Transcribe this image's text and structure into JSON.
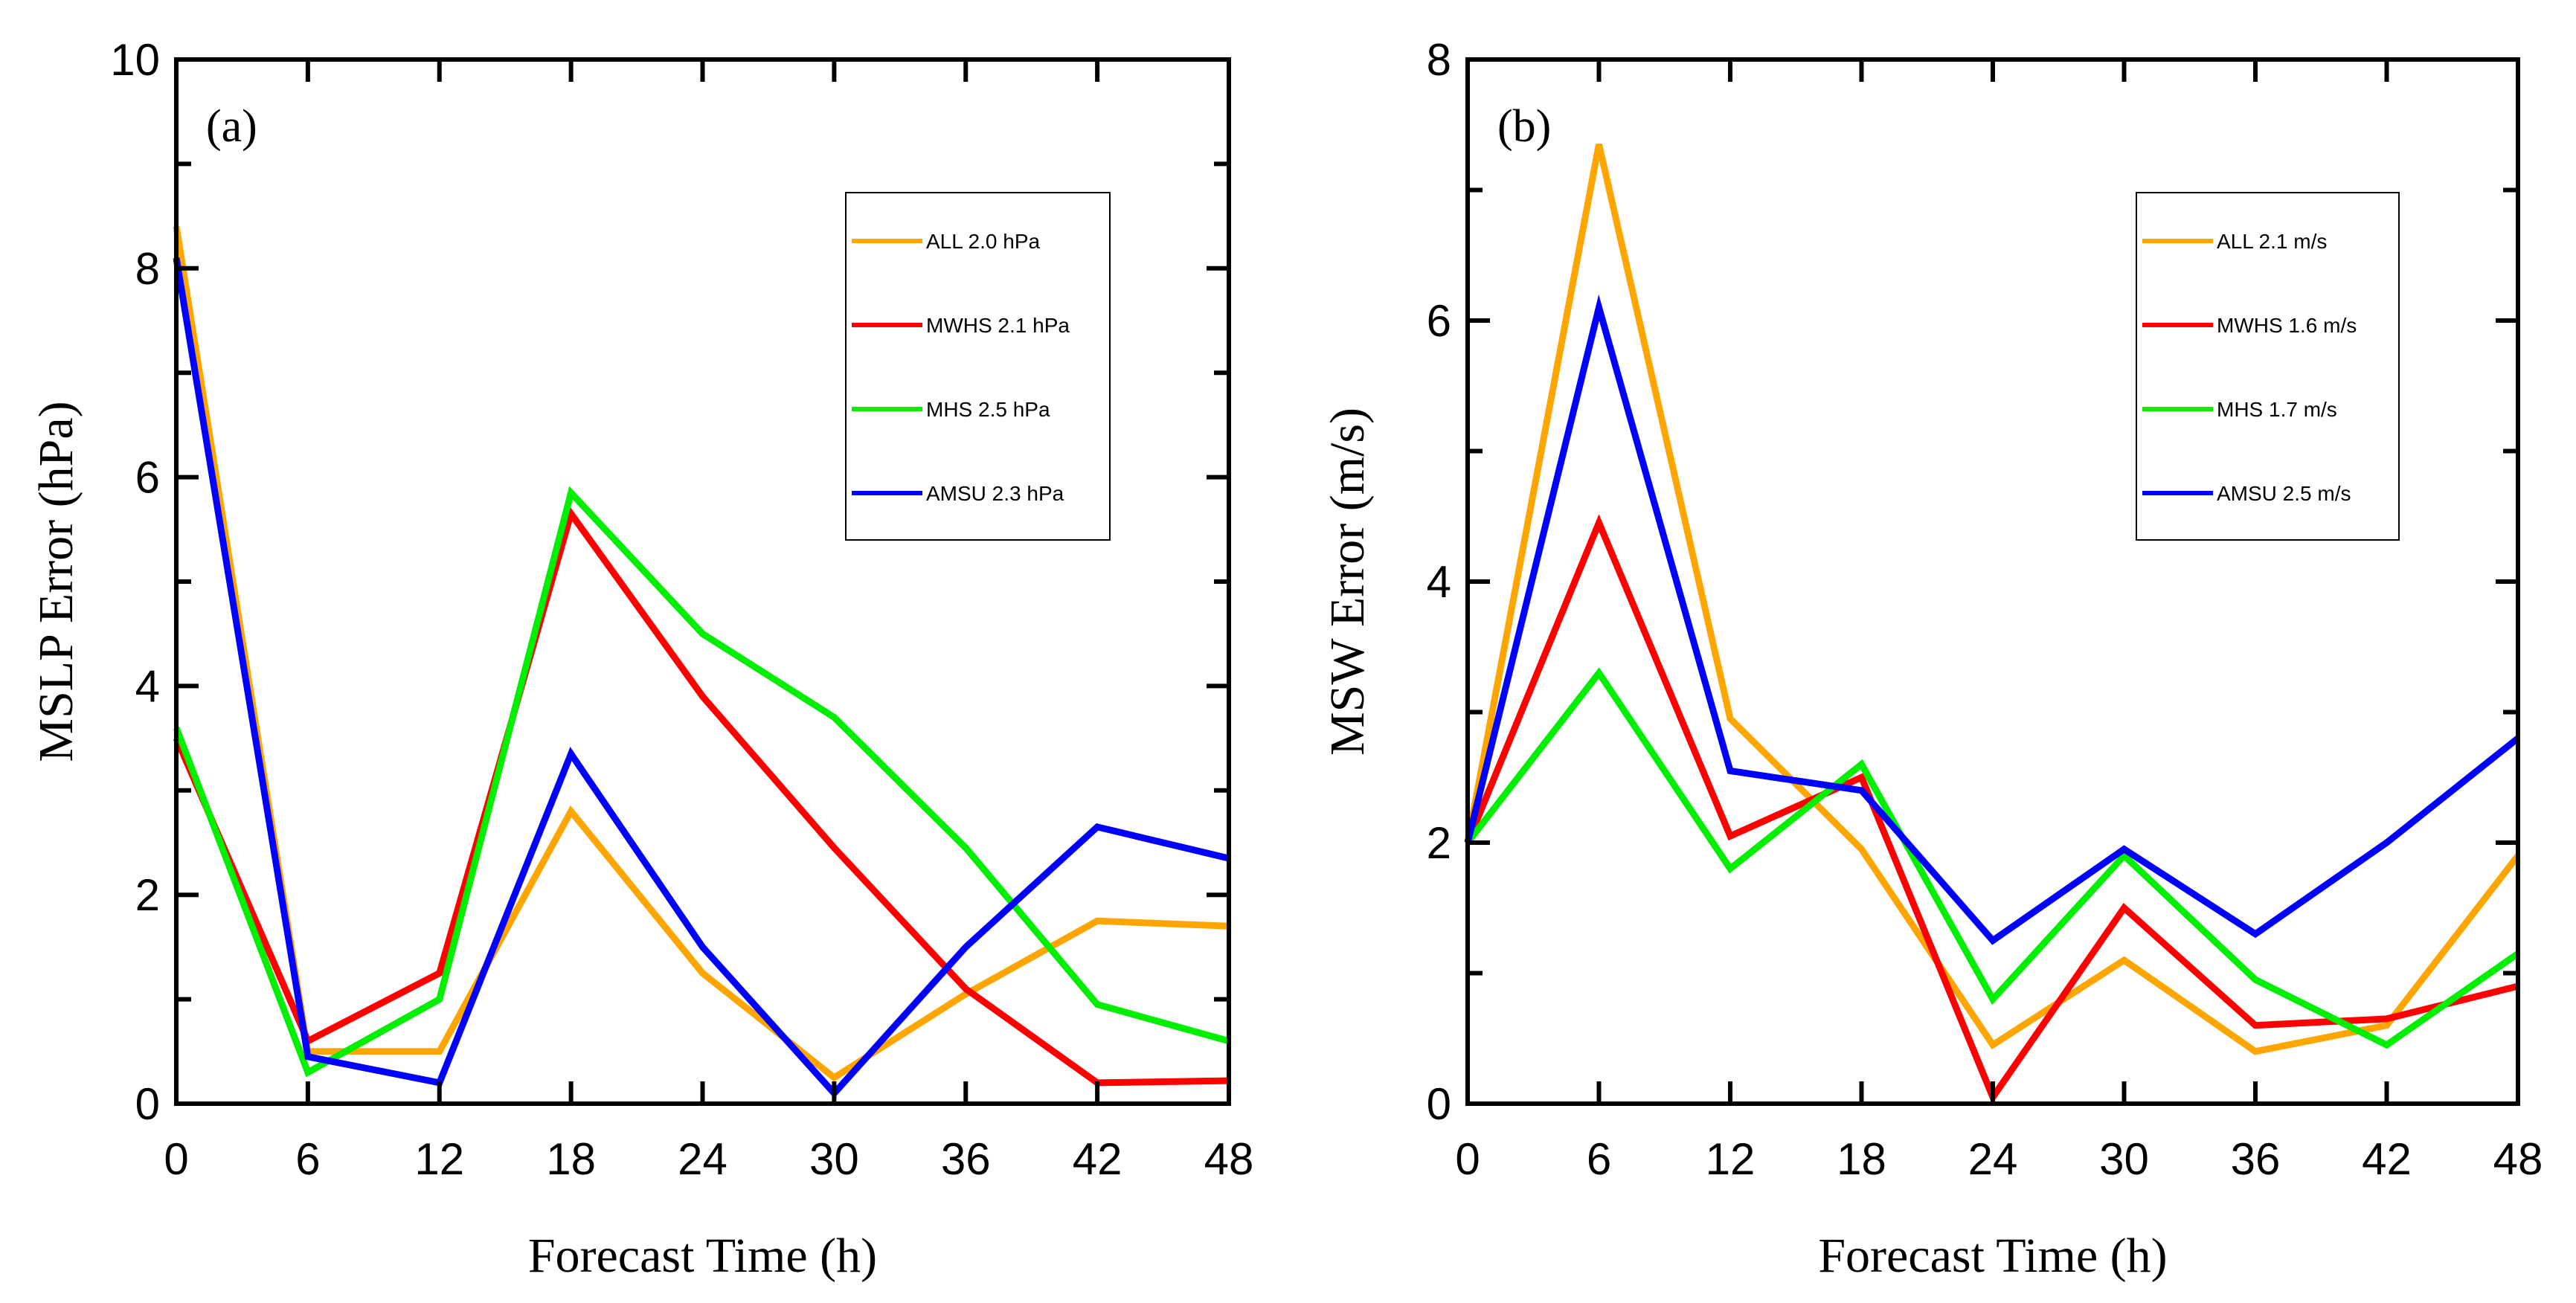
{
  "chart_data": [
    {
      "type": "line",
      "panel_label": "(a)",
      "xlabel": "Forecast Time (h)",
      "ylabel": "MSLP Error (hPa)",
      "x": [
        0,
        6,
        12,
        18,
        24,
        30,
        36,
        42,
        48
      ],
      "xticks": [
        "0",
        "6",
        "12",
        "18",
        "24",
        "30",
        "36",
        "42",
        "48"
      ],
      "yticks": [
        "0",
        "2",
        "4",
        "6",
        "8",
        "10"
      ],
      "xlim": [
        0,
        48
      ],
      "ylim": [
        0,
        10
      ],
      "legend_position": "top-right",
      "series": [
        {
          "name": "ALL",
          "legend": "ALL  2.0 hPa",
          "color": "#FFA500",
          "values": [
            8.4,
            0.5,
            0.5,
            2.8,
            1.25,
            0.25,
            1.05,
            1.75,
            1.7
          ]
        },
        {
          "name": "MWHS",
          "legend": "MWHS  2.1 hPa",
          "color": "#FF0000",
          "values": [
            3.5,
            0.6,
            1.25,
            5.65,
            3.9,
            2.45,
            1.1,
            0.2,
            0.22
          ]
        },
        {
          "name": "MHS",
          "legend": "MHS  2.5 hPa",
          "color": "#00EE00",
          "values": [
            3.6,
            0.3,
            1.0,
            5.85,
            4.5,
            3.7,
            2.45,
            0.95,
            0.6
          ]
        },
        {
          "name": "AMSU",
          "legend": "AMSU  2.3 hPa",
          "color": "#0000FF",
          "values": [
            8.1,
            0.45,
            0.2,
            3.35,
            1.5,
            0.1,
            1.5,
            2.65,
            2.35
          ]
        }
      ]
    },
    {
      "type": "line",
      "panel_label": "(b)",
      "xlabel": "Forecast Time (h)",
      "ylabel": "MSW Error (m/s)",
      "x": [
        0,
        6,
        12,
        18,
        24,
        30,
        36,
        42,
        48
      ],
      "xticks": [
        "0",
        "6",
        "12",
        "18",
        "24",
        "30",
        "36",
        "42",
        "48"
      ],
      "yticks": [
        "0",
        "2",
        "4",
        "6",
        "8"
      ],
      "xlim": [
        0,
        48
      ],
      "ylim": [
        0,
        8
      ],
      "legend_position": "top-right",
      "series": [
        {
          "name": "ALL",
          "legend": "ALL  2.1 m/s",
          "color": "#FFA500",
          "values": [
            2.0,
            7.35,
            2.95,
            1.95,
            0.45,
            1.1,
            0.4,
            0.6,
            1.9
          ]
        },
        {
          "name": "MWHS",
          "legend": "MWHS  1.6 m/s",
          "color": "#FF0000",
          "values": [
            2.0,
            4.45,
            2.05,
            2.5,
            0.05,
            1.5,
            0.6,
            0.65,
            0.9
          ]
        },
        {
          "name": "MHS",
          "legend": "MHS  1.7 m/s",
          "color": "#00EE00",
          "values": [
            2.0,
            3.3,
            1.8,
            2.6,
            0.8,
            1.9,
            0.95,
            0.45,
            1.15
          ]
        },
        {
          "name": "AMSU",
          "legend": "AMSU  2.5 m/s",
          "color": "#0000FF",
          "values": [
            2.0,
            6.1,
            2.55,
            2.4,
            1.25,
            1.95,
            1.3,
            2.0,
            2.8
          ]
        }
      ]
    }
  ]
}
